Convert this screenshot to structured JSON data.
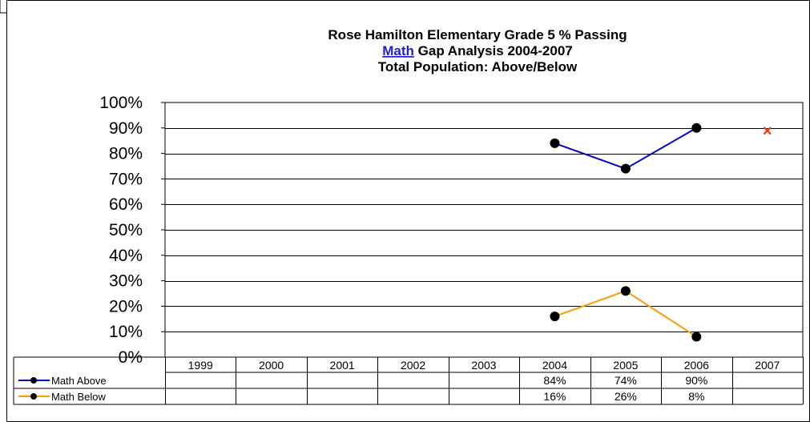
{
  "chart_data": {
    "type": "line",
    "title_lines": [
      {
        "text": "Rose Hamilton Elementary Grade 5 % Passing",
        "link": "",
        "rest": ""
      },
      {
        "text": "",
        "link": "Math",
        "rest": " Gap Analysis 2004-2007"
      },
      {
        "text": "Total Population:  Above/Below",
        "link": "",
        "rest": ""
      }
    ],
    "categories": [
      "1999",
      "2000",
      "2001",
      "2002",
      "2003",
      "2004",
      "2005",
      "2006",
      "2007"
    ],
    "ylim": [
      0,
      100
    ],
    "yticks": [
      0,
      10,
      20,
      30,
      40,
      50,
      60,
      70,
      80,
      90,
      100
    ],
    "ytick_labels": [
      "0%",
      "10%",
      "20%",
      "30%",
      "40%",
      "50%",
      "60%",
      "70%",
      "80%",
      "90%",
      "100%"
    ],
    "grid": true,
    "series": [
      {
        "name": "Math Above",
        "color": "#0000cc",
        "marker_color": "#000000",
        "values": [
          null,
          null,
          null,
          null,
          null,
          84,
          74,
          90,
          null
        ],
        "labels": [
          "",
          "",
          "",
          "",
          "",
          "84%",
          "74%",
          "90%",
          ""
        ]
      },
      {
        "name": "Math Below",
        "color": "#ff9900",
        "marker_color": "#000000",
        "values": [
          null,
          null,
          null,
          null,
          null,
          16,
          26,
          8,
          null
        ],
        "labels": [
          "",
          "",
          "",
          "",
          "",
          "16%",
          "26%",
          "8%",
          ""
        ]
      }
    ],
    "target_marker": {
      "category": "2007",
      "value": 89,
      "symbol": "×",
      "color": "#ff3300"
    }
  }
}
